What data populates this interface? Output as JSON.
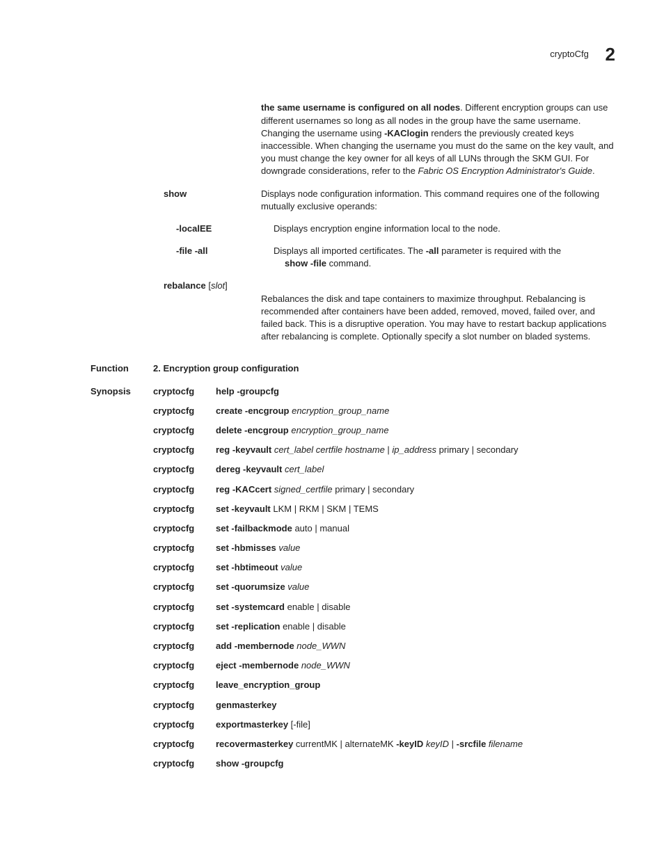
{
  "header": {
    "title": "cryptoCfg",
    "chapter": "2"
  },
  "intro_paragraph": {
    "lead_bold": "the same username is configured on all nodes",
    "text1": ". Different encryption groups can use different usernames so long as all nodes in the group have the same username. Changing the username using ",
    "kac_bold": "-KAClogin",
    "text2": " renders the previously created keys inaccessible. When changing the username you must do the same on the key vault, and you must change the key owner for all keys of all LUNs through the SKM GUI. For downgrade considerations, refer to the ",
    "italic_ref": "Fabric OS Encryption Administrator's Guide",
    "text3": "."
  },
  "definitions": [
    {
      "term": "show",
      "indent": 0,
      "desc_plain": "Displays node configuration information. This command requires one of the following mutually exclusive operands:"
    },
    {
      "term": "-localEE",
      "indent": 1,
      "desc_plain": "Displays encryption engine information local to the node."
    }
  ],
  "file_all": {
    "term": "-file -all",
    "pre": "Displays all imported certificates. The ",
    "bold1": "-all",
    "mid": " parameter is required with the ",
    "bold2": "show -file",
    "post": " command."
  },
  "rebalance": {
    "term_bold": "rebalance",
    "term_brackets_open": " [",
    "term_italic": "slot",
    "term_brackets_close": "]",
    "desc": "Rebalances the disk and tape containers to maximize throughput. Rebalancing is recommended after containers have been added, removed, moved, failed over, and failed back. This is a disruptive operation. You may have to restart backup applications after rebalancing is complete. Optionally specify a slot number on bladed systems."
  },
  "function": {
    "label": "Function",
    "title": "2. Encryption group configuration"
  },
  "synopsis_label": "Synopsis",
  "synopsis": [
    {
      "cmd": "cryptocfg",
      "parts": [
        {
          "b": "help -groupcfg"
        }
      ]
    },
    {
      "cmd": "cryptocfg",
      "parts": [
        {
          "b": "create -encgroup "
        },
        {
          "i": "encryption_group_name"
        }
      ]
    },
    {
      "cmd": "cryptocfg",
      "parts": [
        {
          "b": "delete -encgroup "
        },
        {
          "i": "encryption_group_name"
        }
      ]
    },
    {
      "cmd": "cryptocfg",
      "parts": [
        {
          "b": "reg -keyvault "
        },
        {
          "i": "cert_label certfile hostname"
        },
        {
          "t": " | "
        },
        {
          "i": "ip_address"
        },
        {
          "t": " primary | secondary"
        }
      ]
    },
    {
      "cmd": "cryptocfg",
      "parts": [
        {
          "b": "dereg -keyvault "
        },
        {
          "i": "cert_label"
        }
      ]
    },
    {
      "cmd": "cryptocfg",
      "parts": [
        {
          "b": "reg -KACcert "
        },
        {
          "i": "signed_certfile"
        },
        {
          "t": " primary | secondary"
        }
      ]
    },
    {
      "cmd": "cryptocfg",
      "parts": [
        {
          "b": "set -keyvault"
        },
        {
          "t": " LKM | RKM | SKM | TEMS"
        }
      ]
    },
    {
      "cmd": "cryptocfg",
      "parts": [
        {
          "b": "set -failbackmode"
        },
        {
          "t": " auto | manual"
        }
      ]
    },
    {
      "cmd": "cryptocfg",
      "parts": [
        {
          "b": "set -hbmisses "
        },
        {
          "i": "value"
        }
      ]
    },
    {
      "cmd": "cryptocfg",
      "parts": [
        {
          "b": "set -hbtimeout "
        },
        {
          "i": "value"
        }
      ]
    },
    {
      "cmd": "cryptocfg",
      "parts": [
        {
          "b": "set -quorumsize "
        },
        {
          "i": "value"
        }
      ]
    },
    {
      "cmd": "cryptocfg",
      "parts": [
        {
          "b": "set -systemcard"
        },
        {
          "t": " enable | disable"
        }
      ]
    },
    {
      "cmd": "cryptocfg",
      "parts": [
        {
          "b": "set -replication"
        },
        {
          "t": " enable | disable"
        }
      ]
    },
    {
      "cmd": "cryptocfg",
      "parts": [
        {
          "b": "add -membernode "
        },
        {
          "i": "node_WWN"
        }
      ]
    },
    {
      "cmd": "cryptocfg",
      "parts": [
        {
          "b": "eject -membernode "
        },
        {
          "i": "node_WWN"
        }
      ]
    },
    {
      "cmd": "cryptocfg",
      "parts": [
        {
          "b": "leave_encryption_group"
        }
      ]
    },
    {
      "cmd": "cryptocfg",
      "parts": [
        {
          "b": "genmasterkey"
        }
      ]
    },
    {
      "cmd": "cryptocfg",
      "parts": [
        {
          "b": "exportmasterkey"
        },
        {
          "t": " [-file]"
        }
      ]
    },
    {
      "cmd": "cryptocfg",
      "parts": [
        {
          "b": "recovermasterkey"
        },
        {
          "t": " currentMK | alternateMK "
        },
        {
          "b": "-keyID "
        },
        {
          "i": "keyID"
        },
        {
          "t": " | "
        },
        {
          "b": "-srcfile "
        },
        {
          "i": "filename"
        }
      ]
    },
    {
      "cmd": "cryptocfg",
      "parts": [
        {
          "b": "show -groupcfg"
        }
      ]
    }
  ]
}
